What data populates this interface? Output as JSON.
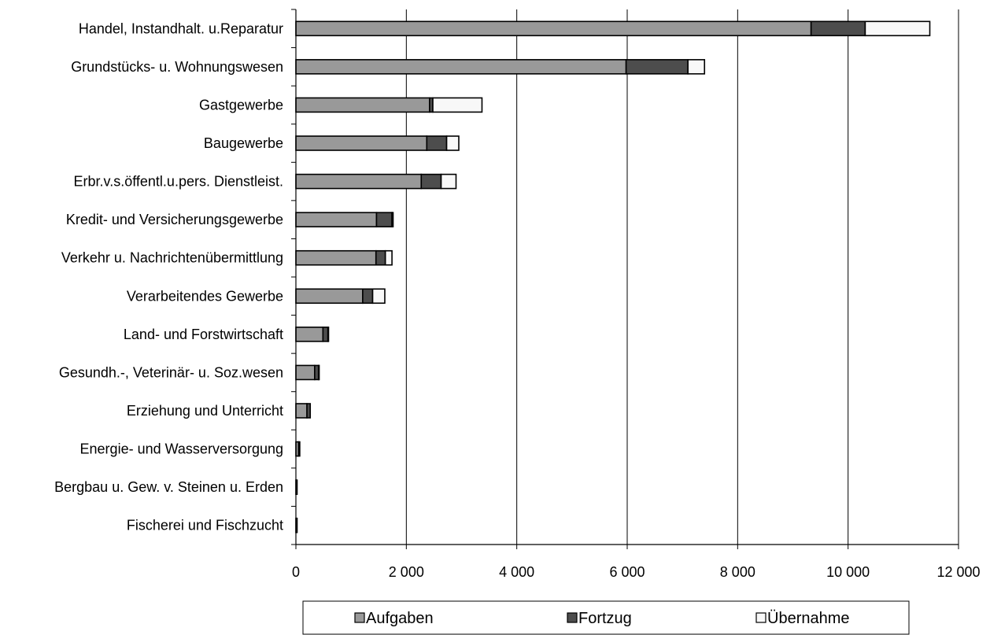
{
  "chart_data": {
    "type": "bar",
    "orientation": "horizontal",
    "stacked": true,
    "categories": [
      "Handel, Instandhalt. u.Reparatur",
      "Grundstücks- u. Wohnungswesen",
      "Gastgewerbe",
      "Baugewerbe",
      "Erbr.v.s.öffentl.u.pers. Dienstleist.",
      "Kredit- und Versicherungsgewerbe",
      "Verkehr u. Nachrichtenübermittlung",
      "Verarbeitendes Gewerbe",
      "Land- und Forstwirtschaft",
      "Gesundh.-, Veterinär- u. Soz.wesen",
      "Erziehung und Unterricht",
      "Energie- und Wasserversorgung",
      "Bergbau u. Gew. v. Steinen u. Erden",
      "Fischerei und Fischzucht"
    ],
    "series": [
      {
        "name": "Aufgaben",
        "color": "#999999",
        "values": [
          9330,
          5980,
          2420,
          2370,
          2270,
          1460,
          1450,
          1210,
          490,
          340,
          200,
          50,
          10,
          10
        ]
      },
      {
        "name": "Fortzug",
        "color": "#4d4d4d",
        "values": [
          980,
          1120,
          60,
          360,
          360,
          280,
          170,
          180,
          90,
          70,
          60,
          20,
          5,
          5
        ]
      },
      {
        "name": "Übernahme",
        "color": "#f8f8f8",
        "values": [
          1170,
          300,
          890,
          220,
          270,
          20,
          120,
          220,
          10,
          10,
          0,
          0,
          0,
          0
        ]
      }
    ],
    "xlim": [
      0,
      12000
    ],
    "xticks": [
      0,
      2000,
      4000,
      6000,
      8000,
      10000,
      12000
    ],
    "xtick_labels": [
      "0",
      "2 000",
      "4 000",
      "6 000",
      "8 000",
      "10 000",
      "12 000"
    ],
    "grid": "vertical",
    "legend_position": "bottom"
  }
}
